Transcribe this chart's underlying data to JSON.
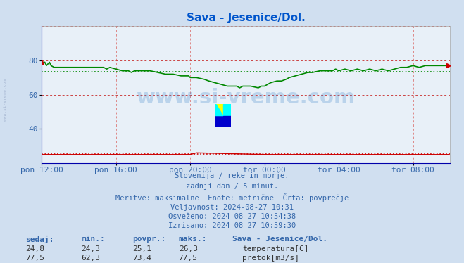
{
  "title": "Sava - Jesenice/Dol.",
  "title_color": "#0055cc",
  "bg_color": "#d0dff0",
  "plot_bg_color": "#e8f0f8",
  "watermark_text": "www.si-vreme.com",
  "watermark_color": "#4488cc",
  "watermark_alpha": 0.28,
  "xlabel_color": "#3366aa",
  "text_info_color": "#3366aa",
  "x_tick_labels": [
    "pon 12:00",
    "pon 16:00",
    "pon 20:00",
    "tor 00:00",
    "tor 04:00",
    "tor 08:00"
  ],
  "x_tick_positions": [
    0,
    48,
    96,
    144,
    192,
    240
  ],
  "xlim": [
    0,
    264
  ],
  "ylim": [
    20,
    100
  ],
  "temp_color": "#cc0000",
  "flow_color": "#008800",
  "temp_avg": 25.1,
  "flow_avg": 73.4,
  "flow_line_x": [
    0,
    0,
    2,
    2,
    3,
    3,
    5,
    5,
    6,
    6,
    8,
    8,
    10,
    10,
    40,
    40,
    42,
    42,
    44,
    44,
    48,
    48,
    52,
    52,
    56,
    56,
    58,
    58,
    60,
    60,
    70,
    70,
    75,
    75,
    80,
    80,
    85,
    85,
    90,
    90,
    95,
    95,
    96,
    96,
    100,
    100,
    105,
    105,
    108,
    108,
    112,
    112,
    116,
    116,
    120,
    120,
    126,
    126,
    128,
    128,
    130,
    130,
    135,
    135,
    140,
    140,
    142,
    142,
    144,
    144,
    146,
    146,
    148,
    148,
    152,
    152,
    155,
    155,
    158,
    158,
    160,
    160,
    164,
    164,
    168,
    168,
    172,
    172,
    175,
    175,
    180,
    180,
    184,
    184,
    188,
    188,
    190,
    190,
    192,
    192,
    196,
    196,
    200,
    200,
    204,
    204,
    208,
    208,
    212,
    212,
    216,
    216,
    220,
    220,
    224,
    224,
    228,
    228,
    232,
    232,
    236,
    236,
    240,
    240,
    244,
    244,
    248,
    248,
    252,
    252,
    255,
    255,
    260,
    260,
    263
  ],
  "flow_line_y": [
    79,
    79,
    79,
    79,
    77,
    77,
    79,
    79,
    77,
    77,
    76,
    76,
    76,
    76,
    76,
    76,
    75,
    75,
    76,
    76,
    75,
    75,
    74,
    74,
    74,
    74,
    73,
    73,
    74,
    74,
    74,
    74,
    73,
    73,
    72,
    72,
    72,
    72,
    71,
    71,
    71,
    71,
    70,
    70,
    70,
    70,
    69,
    69,
    68,
    68,
    67,
    67,
    66,
    66,
    65,
    65,
    65,
    65,
    64,
    64,
    65,
    65,
    65,
    65,
    64,
    64,
    65,
    65,
    65,
    65,
    66,
    66,
    67,
    67,
    68,
    68,
    68,
    68,
    69,
    69,
    70,
    70,
    71,
    71,
    72,
    72,
    73,
    73,
    73,
    73,
    74,
    74,
    74,
    74,
    74,
    74,
    75,
    75,
    74,
    74,
    75,
    75,
    74,
    74,
    75,
    75,
    74,
    74,
    75,
    75,
    74,
    74,
    75,
    75,
    74,
    74,
    75,
    75,
    76,
    76,
    76,
    76,
    77,
    77,
    76,
    76,
    77,
    77,
    77,
    77,
    77,
    77,
    77,
    77,
    77
  ],
  "temp_line_x": [
    0,
    48,
    96,
    100,
    144,
    192,
    240,
    263
  ],
  "temp_line_y": [
    25,
    25,
    25,
    26,
    25,
    25,
    25,
    25
  ],
  "info_lines": [
    "Slovenija / reke in morje.",
    "zadnji dan / 5 minut.",
    "Meritve: maksimalne  Enote: metrične  Črta: povprečje",
    "Veljavnost: 2024-08-27 10:31",
    "Osveženo: 2024-08-27 10:54:38",
    "Izrisano: 2024-08-27 10:59:30"
  ],
  "table_headers": [
    "sedaj:",
    "min.:",
    "povpr.:",
    "maks.:"
  ],
  "table_data": [
    [
      "24,8",
      "24,3",
      "25,1",
      "26,3"
    ],
    [
      "77,5",
      "62,3",
      "73,4",
      "77,5"
    ]
  ],
  "legend_labels": [
    "temperatura[C]",
    "pretok[m3/s]"
  ],
  "legend_colors": [
    "#cc0000",
    "#008800"
  ],
  "station_label": "Sava - Jesenice/Dol.",
  "left_watermark": "www.si-vreme.com"
}
